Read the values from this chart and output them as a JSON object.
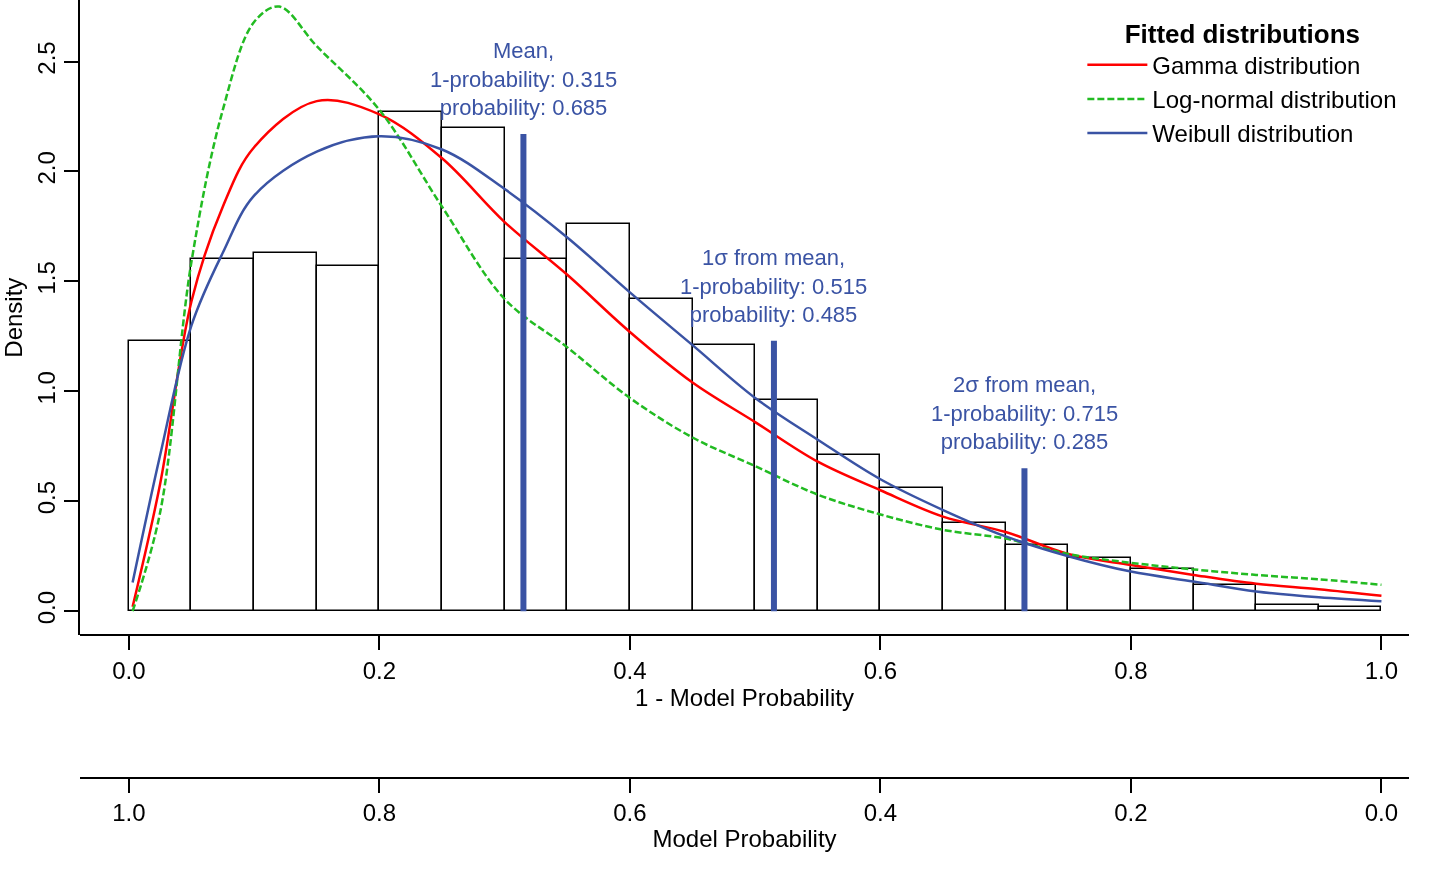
{
  "chart_data": {
    "type": "histogram",
    "xlabel": "1 - Model Probability",
    "ylabel": "Density",
    "x2label": "Model Probability",
    "legend_title": "Fitted distributions",
    "legend": "top right",
    "grid": false,
    "bins": [
      0.0,
      0.05,
      0.1,
      0.15,
      0.2,
      0.25,
      0.3,
      0.35,
      0.4,
      0.45,
      0.5,
      0.55,
      0.6,
      0.65,
      0.7,
      0.75,
      0.8,
      0.85,
      0.9,
      0.95,
      1.0
    ],
    "values": [
      1.23,
      1.6,
      1.63,
      1.57,
      2.27,
      2.2,
      1.6,
      1.76,
      1.42,
      1.21,
      0.96,
      0.71,
      0.56,
      0.4,
      0.3,
      0.24,
      0.19,
      0.12,
      0.03,
      0.02
    ],
    "color": "#ffffff",
    "xlim": [
      -0.039,
      1.022
    ],
    "xticks": [
      {
        "value": 0,
        "label": "0.0"
      },
      {
        "value": 0.2,
        "label": "0.2"
      },
      {
        "value": 0.4,
        "label": "0.4"
      },
      {
        "value": 0.6,
        "label": "0.6"
      },
      {
        "value": 0.8,
        "label": "0.8"
      },
      {
        "value": 1,
        "label": "1.0"
      }
    ],
    "x2lim": [
      1.039,
      -0.022
    ],
    "x2ticks": [
      {
        "value": 1,
        "label": "1.0"
      },
      {
        "value": 0.8,
        "label": "0.8"
      },
      {
        "value": 0.6,
        "label": "0.6"
      },
      {
        "value": 0.4,
        "label": "0.4"
      },
      {
        "value": 0.2,
        "label": "0.2"
      },
      {
        "value": 0,
        "label": "0.0"
      }
    ],
    "ylim": [
      -0.11,
      2.78
    ],
    "yticks": [
      {
        "value": 0,
        "label": "0.0"
      },
      {
        "value": 0.5,
        "label": "0.5"
      },
      {
        "value": 1,
        "label": "1.0"
      },
      {
        "value": 1.5,
        "label": "1.5"
      },
      {
        "value": 2,
        "label": "2.0"
      },
      {
        "value": 2.5,
        "label": "2.5"
      }
    ],
    "series": [
      {
        "type": "line",
        "name": "Gamma distribution",
        "color": "#ff0000",
        "line_style": "solid",
        "x": [
          0.003,
          0.025,
          0.05,
          0.075,
          0.1,
          0.15,
          0.2,
          0.25,
          0.3,
          0.35,
          0.4,
          0.45,
          0.5,
          0.55,
          0.6,
          0.65,
          0.7,
          0.75,
          0.8,
          0.85,
          0.9,
          0.95,
          1.0
        ],
        "values": [
          0.02,
          0.58,
          1.41,
          1.84,
          2.11,
          2.32,
          2.26,
          2.06,
          1.77,
          1.53,
          1.27,
          1.04,
          0.86,
          0.68,
          0.55,
          0.43,
          0.36,
          0.26,
          0.21,
          0.165,
          0.125,
          0.1,
          0.07
        ]
      },
      {
        "type": "line",
        "name": "Log-normal distribution",
        "color": "#22bb22",
        "line_style": "dashed",
        "x": [
          0.003,
          0.025,
          0.05,
          0.075,
          0.1,
          0.12,
          0.15,
          0.2,
          0.25,
          0.3,
          0.35,
          0.4,
          0.45,
          0.5,
          0.55,
          0.6,
          0.65,
          0.7,
          0.75,
          0.8,
          0.85,
          0.9,
          0.95,
          1.0
        ],
        "values": [
          0.0,
          0.45,
          1.59,
          2.28,
          2.68,
          2.75,
          2.57,
          2.28,
          1.84,
          1.42,
          1.2,
          0.97,
          0.79,
          0.66,
          0.53,
          0.44,
          0.37,
          0.33,
          0.26,
          0.22,
          0.19,
          0.165,
          0.145,
          0.12
        ]
      },
      {
        "type": "line",
        "name": "Weibull distribution",
        "color": "#3a53a4",
        "line_style": "solid",
        "x": [
          0.003,
          0.025,
          0.05,
          0.075,
          0.1,
          0.15,
          0.2,
          0.25,
          0.3,
          0.35,
          0.4,
          0.45,
          0.5,
          0.55,
          0.6,
          0.65,
          0.7,
          0.75,
          0.8,
          0.85,
          0.9,
          0.95,
          1.0
        ],
        "values": [
          0.13,
          0.71,
          1.3,
          1.63,
          1.89,
          2.09,
          2.16,
          2.1,
          1.92,
          1.7,
          1.45,
          1.21,
          0.97,
          0.78,
          0.6,
          0.46,
          0.34,
          0.25,
          0.18,
          0.135,
          0.09,
          0.063,
          0.045
        ]
      },
      {
        "type": "line",
        "color": "#3a53a4",
        "x": [
          0.315,
          0.315
        ],
        "values": [
          0,
          2.17
        ]
      },
      {
        "type": "line",
        "color": "#3a53a4",
        "x": [
          0.515,
          0.515
        ],
        "values": [
          0,
          1.23
        ]
      },
      {
        "type": "line",
        "color": "#3a53a4",
        "x": [
          0.715,
          0.715
        ],
        "values": [
          0,
          0.65
        ]
      }
    ],
    "annotations": [
      {
        "text": "Mean,\n1-probability: 0.315\nprobability: 0.685",
        "x": 0.315,
        "y": 2.17
      },
      {
        "text": "1σ from mean,\n1-probability: 0.515\nprobability: 0.485",
        "x": 0.515,
        "y": 1.23
      },
      {
        "text": "2σ from mean,\n1-probability: 0.715\nprobability: 0.285",
        "x": 0.715,
        "y": 0.65
      }
    ]
  }
}
